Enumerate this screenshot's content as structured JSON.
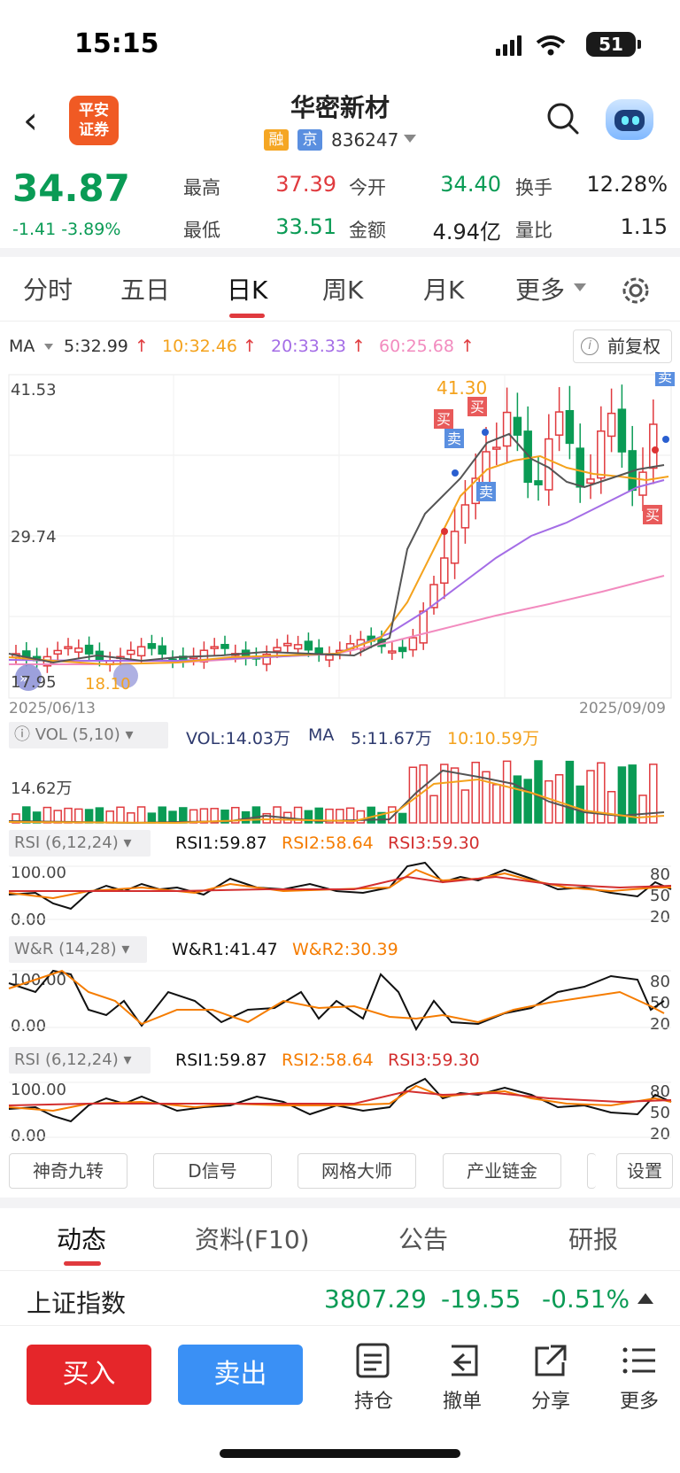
{
  "status": {
    "time": "15:15",
    "battery": "51"
  },
  "header": {
    "logo": [
      "平安",
      "证券"
    ],
    "name": "华密新材",
    "tag_rong": "融",
    "tag_jing": "京",
    "code": "836247"
  },
  "quote": {
    "price": "34.87",
    "change": "-1.41 -3.89%",
    "high_label": "最高",
    "high": "37.39",
    "open_label": "今开",
    "open": "34.40",
    "turnover_label": "换手",
    "turnover": "12.28%",
    "low_label": "最低",
    "low": "33.51",
    "amount_label": "金额",
    "amount": "4.94亿",
    "ratio_label": "量比",
    "ratio": "1.15"
  },
  "tabs": [
    "分时",
    "五日",
    "日K",
    "周K",
    "月K",
    "更多"
  ],
  "ma": {
    "label": "MA",
    "ma5": "5:32.99",
    "ma10": "10:32.46",
    "ma20": "20:33.33",
    "ma60": "60:25.68",
    "adjust": "前复权"
  },
  "kchart": {
    "y_top": "41.53",
    "y_mid": "29.74",
    "y_low": "17.95",
    "high_mark": "41.30",
    "low_mark": "18.10",
    "date_start": "2025/06/13",
    "date_end": "2025/09/09",
    "buy": "买",
    "sell": "卖"
  },
  "vol": {
    "box": "VOL (5,10)",
    "vol": "VOL:14.03万",
    "ma": "MA",
    "ma5": "5:11.67万",
    "ma10": "10:10.59万",
    "axis": "14.62万"
  },
  "rsi": {
    "box": "RSI (6,12,24)",
    "r1": "RSI1:59.87",
    "r2": "RSI2:58.64",
    "r3": "RSI3:59.30",
    "top": "100.00",
    "bottom": "0.00"
  },
  "wr": {
    "box": "W&R (14,28)",
    "w1": "W&R1:41.47",
    "w2": "W&R2:30.39",
    "top": "100.00",
    "bottom": "0.00"
  },
  "levels": {
    "l80": "80",
    "l50": "50",
    "l20": "20"
  },
  "tools": [
    "神奇九转",
    "D信号",
    "网格大师",
    "产业链金",
    "设置"
  ],
  "bottom_tabs": [
    "动态",
    "资料(F10)",
    "公告",
    "研报"
  ],
  "index": {
    "name": "上证指数",
    "value": "3807.29",
    "change": "-19.55",
    "pct": "-0.51%"
  },
  "actions": {
    "buy": "买入",
    "sell": "卖出",
    "hold": "持仓",
    "cancel": "撤单",
    "share": "分享",
    "more": "更多"
  },
  "colors": {
    "up": "#e03a3e",
    "down": "#0a9b55",
    "ma5": "#333333",
    "ma10": "#f4a21c",
    "ma20": "#a46de6",
    "ma60": "#f28bbf"
  }
}
